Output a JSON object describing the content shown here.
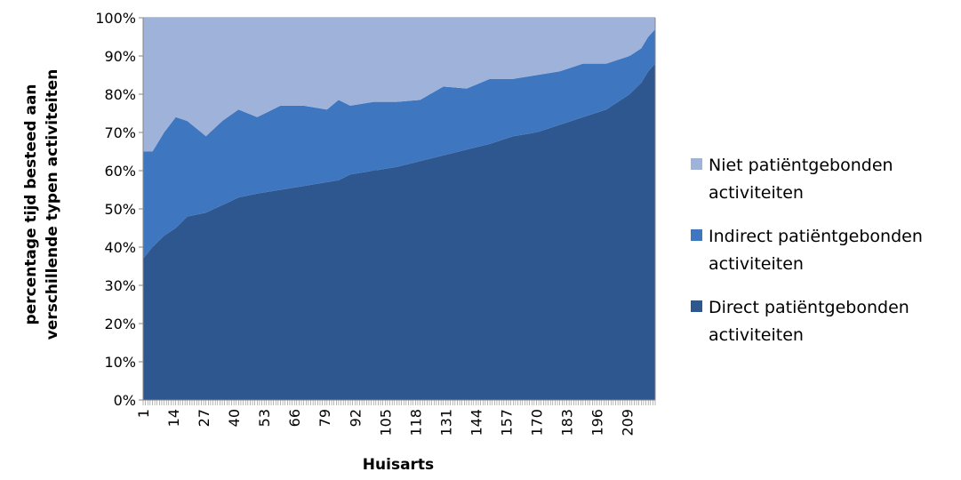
{
  "chart_data": {
    "type": "area",
    "stacked": true,
    "normalized_percent": true,
    "title": "",
    "xlabel": "Huisarts",
    "ylabel_lines": [
      "percentage tijd besteed aan",
      "verschillende typen activiteiten"
    ],
    "ylim": [
      0,
      100
    ],
    "y_ticks": [
      "0%",
      "10%",
      "20%",
      "30%",
      "40%",
      "50%",
      "60%",
      "70%",
      "80%",
      "90%",
      "100%"
    ],
    "x_ticks": [
      "1",
      "14",
      "27",
      "40",
      "53",
      "66",
      "79",
      "92",
      "105",
      "118",
      "131",
      "144",
      "157",
      "170",
      "183",
      "196",
      "209"
    ],
    "x_count": 221,
    "legend_position": "right",
    "colors": {
      "direct": "#2E5790",
      "indirect": "#3E77BF",
      "niet": "#9FB2D9"
    },
    "series": [
      {
        "name": "Direct patiëntgebonden activiteiten",
        "key": "direct",
        "x": [
          1,
          5,
          10,
          15,
          20,
          28,
          35,
          42,
          50,
          60,
          70,
          80,
          85,
          90,
          100,
          110,
          120,
          130,
          140,
          150,
          160,
          170,
          180,
          190,
          200,
          205,
          210,
          215,
          218,
          221
        ],
        "values": [
          37,
          40,
          43,
          45,
          48,
          49,
          51,
          53,
          54,
          55,
          56,
          57,
          57.5,
          59,
          60,
          61,
          62.5,
          64,
          65.5,
          67,
          69,
          70,
          72,
          74,
          76,
          78,
          80,
          83,
          86,
          88
        ]
      },
      {
        "name": "Indirect patiëntgebonden activiteiten",
        "key": "indirect",
        "x": [
          1,
          5,
          10,
          15,
          20,
          28,
          35,
          42,
          50,
          60,
          70,
          80,
          85,
          90,
          100,
          110,
          120,
          130,
          140,
          150,
          160,
          170,
          180,
          190,
          200,
          205,
          210,
          215,
          218,
          221
        ],
        "values": [
          28,
          25,
          27,
          29,
          25,
          20,
          22,
          23,
          20,
          22,
          21,
          19,
          21,
          18,
          18,
          17,
          16,
          18,
          16,
          17,
          15,
          15,
          14,
          14,
          12,
          11,
          10,
          9,
          9,
          9
        ]
      },
      {
        "name": "Niet patiëntgebonden activiteiten",
        "key": "niet",
        "x": [
          1,
          5,
          10,
          15,
          20,
          28,
          35,
          42,
          50,
          60,
          70,
          80,
          85,
          90,
          100,
          110,
          120,
          130,
          140,
          150,
          160,
          170,
          180,
          190,
          200,
          205,
          210,
          215,
          218,
          221
        ],
        "values": [
          35,
          35,
          30,
          26,
          27,
          31,
          27,
          24,
          26,
          23,
          23,
          24,
          21.5,
          23,
          22,
          22,
          21.5,
          18,
          18.5,
          16,
          16,
          15,
          14,
          12,
          12,
          11,
          10,
          8,
          5,
          3
        ]
      }
    ]
  }
}
